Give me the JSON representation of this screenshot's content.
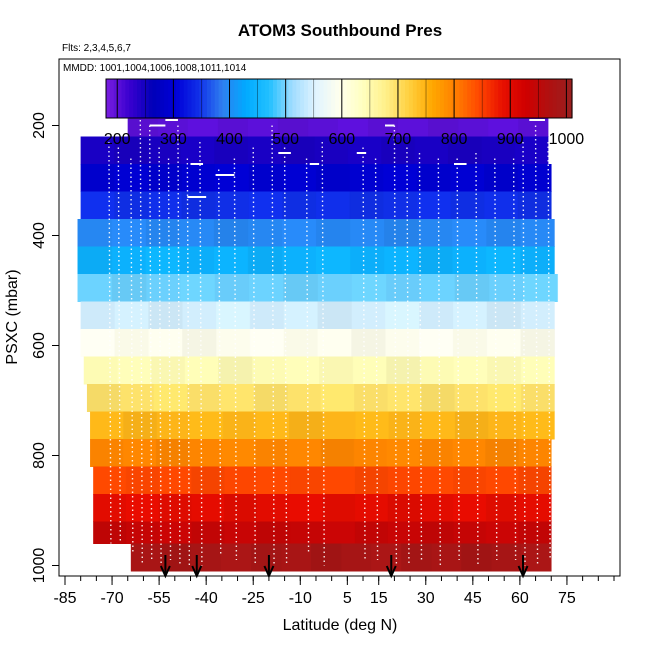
{
  "chart_data": {
    "type": "heatmap",
    "title": "ATOM3 Southbound Pres",
    "flights_note": "Flts: 2,3,4,5,6,7",
    "dates_note": "MMDD: 1001,1004,1006,1008,1011,1014",
    "xlabel": "Latitude (deg N)",
    "ylabel": "PSXC (mbar)",
    "xlim": [
      -85,
      90
    ],
    "ylim": [
      1010,
      90
    ],
    "x_ticks": [
      -85,
      -70,
      -55,
      -40,
      -25,
      -10,
      5,
      15,
      30,
      45,
      60,
      75
    ],
    "x_tick_labels": [
      "-85",
      "-70",
      "-55",
      "-40",
      "-25",
      "-10",
      "5",
      "15",
      "30",
      "45",
      "60",
      "75"
    ],
    "y_ticks": [
      200,
      400,
      600,
      800,
      1000
    ],
    "y_tick_labels": [
      "200",
      "400",
      "600",
      "800",
      "1000"
    ],
    "colorbar": {
      "range": [
        180,
        1010
      ],
      "ticks": [
        200,
        300,
        400,
        500,
        600,
        700,
        800,
        900,
        1000
      ],
      "tick_labels": [
        "200",
        "300",
        "400",
        "500",
        "600",
        "700",
        "800",
        "900",
        "1000"
      ],
      "colors": [
        "#7a1fe0",
        "#3a00d0",
        "#0000b8",
        "#0000d8",
        "#1030e8",
        "#2f7ff0",
        "#00aaff",
        "#22c0ff",
        "#a0dcff",
        "#e0f4ff",
        "#ffffee",
        "#ffffc0",
        "#fff08a",
        "#ffd040",
        "#ffa800",
        "#ff7e00",
        "#ff4800",
        "#e81000",
        "#d00000",
        "#b01010",
        "#9a2020"
      ]
    },
    "bands": [
      {
        "p_top": 180,
        "p_bottom": 220,
        "lat_start": -65,
        "lat_end": 69
      },
      {
        "p_top": 220,
        "p_bottom": 270,
        "lat_start": -80,
        "lat_end": 69
      },
      {
        "p_top": 270,
        "p_bottom": 320,
        "lat_start": -80,
        "lat_end": 70
      },
      {
        "p_top": 320,
        "p_bottom": 370,
        "lat_start": -80,
        "lat_end": 70
      },
      {
        "p_top": 370,
        "p_bottom": 420,
        "lat_start": -81,
        "lat_end": 71
      },
      {
        "p_top": 420,
        "p_bottom": 470,
        "lat_start": -81,
        "lat_end": 71
      },
      {
        "p_top": 470,
        "p_bottom": 520,
        "lat_start": -81,
        "lat_end": 72
      },
      {
        "p_top": 520,
        "p_bottom": 570,
        "lat_start": -80,
        "lat_end": 71
      },
      {
        "p_top": 570,
        "p_bottom": 620,
        "lat_start": -80,
        "lat_end": 71
      },
      {
        "p_top": 620,
        "p_bottom": 670,
        "lat_start": -79,
        "lat_end": 71
      },
      {
        "p_top": 670,
        "p_bottom": 720,
        "lat_start": -78,
        "lat_end": 71
      },
      {
        "p_top": 720,
        "p_bottom": 770,
        "lat_start": -77,
        "lat_end": 71
      },
      {
        "p_top": 770,
        "p_bottom": 820,
        "lat_start": -77,
        "lat_end": 70
      },
      {
        "p_top": 820,
        "p_bottom": 870,
        "lat_start": -76,
        "lat_end": 70
      },
      {
        "p_top": 870,
        "p_bottom": 920,
        "lat_start": -76,
        "lat_end": 70
      },
      {
        "p_top": 920,
        "p_bottom": 960,
        "lat_start": -76,
        "lat_end": 70
      },
      {
        "p_top": 960,
        "p_bottom": 1010,
        "lat_start": -64,
        "lat_end": 70
      }
    ],
    "profiles": [
      {
        "lat": -71,
        "p_min": 230,
        "p_max": 960
      },
      {
        "lat": -68,
        "p_min": 240,
        "p_max": 960
      },
      {
        "lat": -64,
        "p_min": 260,
        "p_max": 980
      },
      {
        "lat": -61,
        "p_min": 190,
        "p_max": 1000
      },
      {
        "lat": -58,
        "p_min": 200,
        "p_max": 990
      },
      {
        "lat": -55,
        "p_min": 240,
        "p_max": 1000
      },
      {
        "lat": -52,
        "p_min": 260,
        "p_max": 990
      },
      {
        "lat": -49,
        "p_min": 200,
        "p_max": 1000
      },
      {
        "lat": -46,
        "p_min": 260,
        "p_max": 1000
      },
      {
        "lat": -42,
        "p_min": 230,
        "p_max": 1000
      },
      {
        "lat": -36,
        "p_min": 280,
        "p_max": 980
      },
      {
        "lat": -31,
        "p_min": 260,
        "p_max": 990
      },
      {
        "lat": -25,
        "p_min": 240,
        "p_max": 1000
      },
      {
        "lat": -19,
        "p_min": 200,
        "p_max": 1000
      },
      {
        "lat": -15,
        "p_min": 240,
        "p_max": 1000
      },
      {
        "lat": -8,
        "p_min": 260,
        "p_max": 980
      },
      {
        "lat": -3,
        "p_min": 230,
        "p_max": 1000
      },
      {
        "lat": 10,
        "p_min": 240,
        "p_max": 990
      },
      {
        "lat": 14,
        "p_min": 260,
        "p_max": 990
      },
      {
        "lat": 20,
        "p_min": 200,
        "p_max": 1000
      },
      {
        "lat": 24,
        "p_min": 240,
        "p_max": 1000
      },
      {
        "lat": 28,
        "p_min": 250,
        "p_max": 990
      },
      {
        "lat": 34,
        "p_min": 260,
        "p_max": 1000
      },
      {
        "lat": 40,
        "p_min": 260,
        "p_max": 990
      },
      {
        "lat": 46,
        "p_min": 250,
        "p_max": 1000
      },
      {
        "lat": 52,
        "p_min": 260,
        "p_max": 990
      },
      {
        "lat": 58,
        "p_min": 260,
        "p_max": 990
      },
      {
        "lat": 61,
        "p_min": 230,
        "p_max": 1000
      },
      {
        "lat": 65,
        "p_min": 200,
        "p_max": 1000
      },
      {
        "lat": 69,
        "p_min": 230,
        "p_max": 990
      }
    ],
    "level_legs": [
      {
        "lat_start": -58,
        "lat_end": -53,
        "p": 200
      },
      {
        "lat_start": -53,
        "lat_end": -49,
        "p": 190
      },
      {
        "lat_start": -46,
        "lat_end": -40,
        "p": 330
      },
      {
        "lat_start": -45,
        "lat_end": -41,
        "p": 270
      },
      {
        "lat_start": -37,
        "lat_end": -31,
        "p": 290
      },
      {
        "lat_start": -17,
        "lat_end": -13,
        "p": 250
      },
      {
        "lat_start": -7,
        "lat_end": -4,
        "p": 270
      },
      {
        "lat_start": 8,
        "lat_end": 11,
        "p": 250
      },
      {
        "lat_start": 17,
        "lat_end": 20,
        "p": 200
      },
      {
        "lat_start": 63,
        "lat_end": 68,
        "p": 190
      },
      {
        "lat_start": 39,
        "lat_end": 43,
        "p": 270
      }
    ],
    "arrow_lats": [
      -53,
      -43,
      -20,
      19,
      61
    ]
  }
}
